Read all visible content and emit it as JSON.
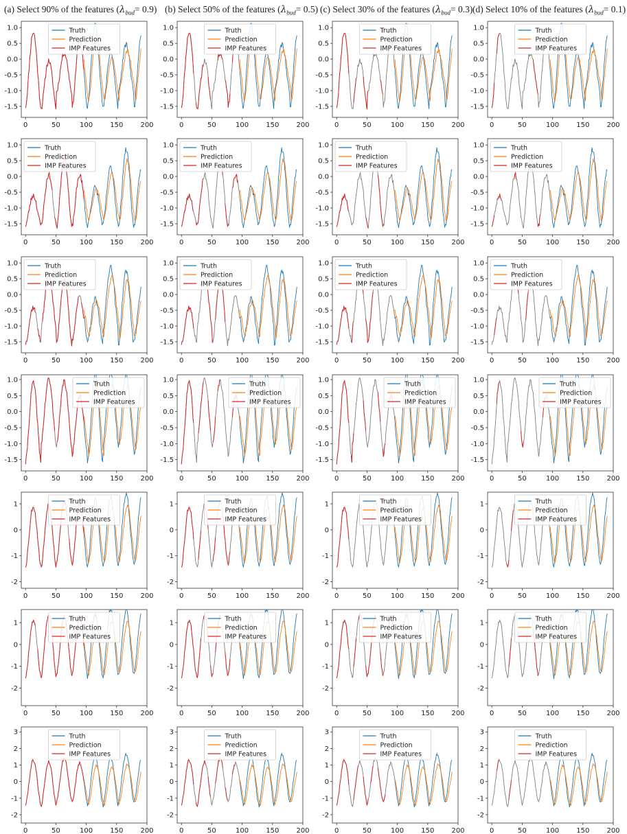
{
  "columns": [
    {
      "label": "(a) Select 90% of the features (",
      "lambda": "λ",
      "sub": "bud",
      "suffix": "= 0.9)",
      "imp_fraction": 0.9
    },
    {
      "label": "(b) Select 50% of the features (",
      "lambda": "λ",
      "sub": "bud",
      "suffix": "= 0.5)",
      "imp_fraction": 0.5
    },
    {
      "label": "(c) Select 30% of the features (",
      "lambda": "λ",
      "sub": "bud",
      "suffix": "= 0.3)",
      "imp_fraction": 0.3
    },
    {
      "label": "(d) Select 10% of the features (",
      "lambda": "λ",
      "sub": "bud",
      "suffix": "= 0.1)",
      "imp_fraction": 0.1
    }
  ],
  "legend_labels": [
    "Truth",
    "Prediction",
    "IMP Features"
  ],
  "colors": {
    "truth": "#1f77b4",
    "prediction": "#ff7f0e",
    "imp": "#d62728",
    "history": "#7f7f7f"
  },
  "chart_data": {
    "type": "line",
    "x_ticks": [
      0,
      50,
      100,
      150,
      200
    ],
    "xlim": [
      -7,
      200
    ],
    "history_end_x": 96,
    "rows": [
      {
        "ylim": [
          -1.85,
          1.2
        ],
        "y_ticks": [
          "-1.5",
          "-1.0",
          "-0.5",
          "0.0",
          "0.5",
          "1.0"
        ],
        "y_tick_values": [
          -1.5,
          -1.0,
          -0.5,
          0.0,
          0.5,
          1.0
        ],
        "legend_position": "top-center",
        "seed": 11,
        "lows": [
          -1.5,
          -1.6,
          -1.05,
          -1.6
        ],
        "highs": [
          0.6,
          0.85,
          -0.05,
          0.2
        ],
        "pred_bias": -0.2
      },
      {
        "ylim": [
          -1.85,
          1.2
        ],
        "y_ticks": [
          "-1.5",
          "-1.0",
          "-0.5",
          "0.0",
          "0.5",
          "1.0"
        ],
        "y_tick_values": [
          -1.5,
          -1.0,
          -0.5,
          0.0,
          0.5,
          1.0
        ],
        "legend_position": "top-left",
        "seed": 23,
        "lows": [
          -1.55,
          -1.55,
          -1.65,
          -1.6
        ],
        "highs": [
          0.05,
          -0.6,
          0.05,
          0.6
        ],
        "pred_bias": -0.3
      },
      {
        "ylim": [
          -1.85,
          1.2
        ],
        "y_ticks": [
          "-1.5",
          "-1.0",
          "-0.5",
          "0.0",
          "0.5",
          "1.0"
        ],
        "y_tick_values": [
          -1.5,
          -1.0,
          -0.5,
          0.0,
          0.5,
          1.0
        ],
        "legend_position": "top-left",
        "seed": 37,
        "lows": [
          -1.55,
          -1.1,
          -1.6,
          -1.5
        ],
        "highs": [
          -0.05,
          -0.4,
          0.65,
          0.5
        ],
        "pred_bias": -0.25
      },
      {
        "ylim": [
          -1.85,
          1.15
        ],
        "y_ticks": [
          "-1.5",
          "-1.0",
          "-0.5",
          "0.0",
          "0.5",
          "1.0"
        ],
        "y_tick_values": [
          -1.5,
          -1.0,
          -0.5,
          0.0,
          0.5,
          1.0
        ],
        "legend_position": "top-right",
        "seed": 41,
        "lows": [
          -1.6,
          -1.0,
          -1.1,
          -1.4
        ],
        "highs": [
          0.5,
          0.9,
          1.0,
          0.95
        ],
        "pred_bias": -0.3
      },
      {
        "ylim": [
          -2.25,
          1.45
        ],
        "y_ticks": [
          "-2",
          "-1",
          "0",
          "1"
        ],
        "y_tick_values": [
          -2,
          -1,
          0,
          1
        ],
        "legend_position": "top-center",
        "seed": 53,
        "lows": [
          -1.4,
          -1.5,
          -1.3,
          -1.4
        ],
        "highs": [
          1.0,
          0.9,
          1.0,
          1.1
        ],
        "pred_bias": -0.3
      },
      {
        "ylim": [
          -2.8,
          1.6
        ],
        "y_ticks": [
          "-2",
          "-1",
          "0",
          "1"
        ],
        "y_tick_values": [
          -2,
          -1,
          0,
          1
        ],
        "legend_position": "top-center",
        "seed": 67,
        "lows": [
          -1.5,
          -1.5,
          -1.4,
          -1.4
        ],
        "highs": [
          1.2,
          1.1,
          1.4,
          1.3
        ],
        "pred_bias": -0.4
      },
      {
        "ylim": [
          -2.5,
          3.3
        ],
        "y_ticks": [
          "-2",
          "-1",
          "0",
          "1",
          "2",
          "3"
        ],
        "y_tick_values": [
          -2,
          -1,
          0,
          1,
          2,
          3
        ],
        "legend_position": "top-center",
        "seed": 79,
        "lows": [
          -1.4,
          -1.5,
          -1.2,
          -1.3
        ],
        "highs": [
          1.1,
          1.3,
          1.2,
          1.4
        ],
        "pred_bias": -0.5
      }
    ]
  }
}
